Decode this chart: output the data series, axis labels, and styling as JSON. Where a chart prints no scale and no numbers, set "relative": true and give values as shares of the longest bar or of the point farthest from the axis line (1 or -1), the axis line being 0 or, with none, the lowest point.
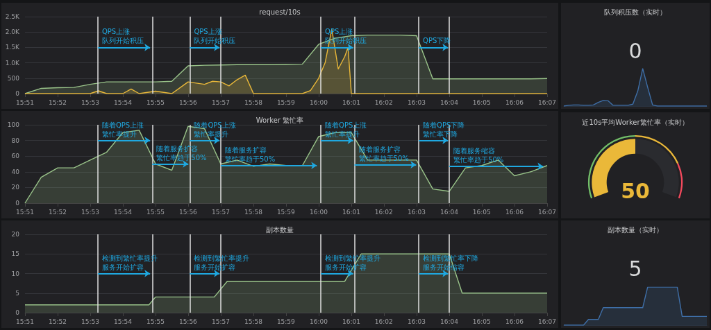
{
  "chart_data": [
    {
      "type": "area",
      "title": "request/10s",
      "x": [
        15.85,
        15.8583,
        15.8667,
        15.875,
        15.8833,
        15.8917,
        15.9,
        15.9083,
        15.9167,
        15.925,
        15.9333,
        15.9417,
        15.95,
        15.9583,
        15.9667,
        15.975,
        15.9833,
        15.9917,
        16.0,
        16.0083,
        16.0167,
        16.025,
        16.0333,
        16.0417,
        16.05,
        16.0583,
        16.0667,
        16.075,
        16.0833,
        16.0917,
        16.1,
        16.1083,
        16.1167
      ],
      "series": [
        {
          "color": "#9ac48a",
          "values": [
            0,
            170,
            190,
            200,
            300,
            380,
            380,
            380,
            380,
            400,
            900,
            920,
            930,
            940,
            940,
            940,
            950,
            960,
            1600,
            1800,
            1880,
            1900,
            1900,
            1900,
            1880,
            480,
            480,
            480,
            480,
            480,
            480,
            480,
            490
          ]
        },
        {
          "color": "#eab839",
          "x": [
            15.85,
            15.8833,
            15.8875,
            15.8917,
            15.9,
            15.9042,
            15.9083,
            15.9167,
            15.925,
            15.9333,
            15.9417,
            15.9458,
            15.95,
            15.9542,
            15.9583,
            15.9625,
            15.9667,
            15.9917,
            15.9958,
            16.0,
            16.0033,
            16.0067,
            16.01,
            16.0133,
            16.015,
            16.0167,
            16.1167
          ],
          "values": [
            0,
            0,
            90,
            0,
            0,
            150,
            0,
            80,
            0,
            380,
            300,
            400,
            380,
            250,
            450,
            600,
            0,
            0,
            100,
            500,
            1000,
            2100,
            800,
            1200,
            1500,
            0,
            0
          ]
        }
      ],
      "xlim": [
        15.85,
        16.1167
      ],
      "xticks": [
        {
          "value": 15.85,
          "label": "15:51"
        },
        {
          "value": 15.8667,
          "label": "15:52"
        },
        {
          "value": 15.8833,
          "label": "15:53"
        },
        {
          "value": 15.9,
          "label": "15:54"
        },
        {
          "value": 15.9167,
          "label": "15:55"
        },
        {
          "value": 15.9333,
          "label": "15:56"
        },
        {
          "value": 15.95,
          "label": "15:57"
        },
        {
          "value": 15.9667,
          "label": "15:58"
        },
        {
          "value": 15.9833,
          "label": "15:59"
        },
        {
          "value": 16,
          "label": "16:00"
        },
        {
          "value": 16.0167,
          "label": "16:01"
        },
        {
          "value": 16.0333,
          "label": "16:02"
        },
        {
          "value": 16.05,
          "label": "16:03"
        },
        {
          "value": 16.0667,
          "label": "16:04"
        },
        {
          "value": 16.0833,
          "label": "16:05"
        },
        {
          "value": 16.1,
          "label": "16:06"
        },
        {
          "value": 16.1167,
          "label": "16:07"
        }
      ],
      "ylim": [
        0,
        2500
      ],
      "yticks": [
        0,
        500,
        {
          "value": 1000,
          "label": "1.0K"
        },
        {
          "value": 1500,
          "label": "1.5K"
        },
        {
          "value": 2000,
          "label": "2.0K"
        },
        {
          "value": 2500,
          "label": "2.5K"
        }
      ],
      "grid": "y",
      "ref_lines": [
        {
          "axis": "x",
          "value": 15.8872,
          "color": "#e0e0e0"
        },
        {
          "axis": "x",
          "value": 15.915,
          "color": "#e0e0e0"
        },
        {
          "axis": "x",
          "value": 15.9342,
          "color": "#e0e0e0"
        },
        {
          "axis": "x",
          "value": 15.95,
          "color": "#e0e0e0"
        },
        {
          "axis": "x",
          "value": 16.0011,
          "color": "#e0e0e0"
        },
        {
          "axis": "x",
          "value": 16.0183,
          "color": "#e0e0e0"
        },
        {
          "axis": "x",
          "value": 16.0511,
          "color": "#e0e0e0"
        },
        {
          "axis": "x",
          "value": 16.0667,
          "color": "#e0e0e0"
        }
      ],
      "annotations": [
        "QPS上涨",
        {
          "text": "队列开始积压",
          "x": 15.8872,
          "y": 1500
        },
        "QPS上涨",
        {
          "text": "队列开始积压",
          "x": 15.9342,
          "y": 1500
        },
        "QPS上涨",
        {
          "text": "队列开始积压",
          "x": 16.0011,
          "y": 1500
        },
        {
          "text": "QPS下降",
          "x": 16.0511,
          "y": 1500
        }
      ]
    },
    {
      "type": "area",
      "title": "Worker 繁忙率",
      "x": [
        15.85,
        15.8583,
        15.8667,
        15.875,
        15.8833,
        15.8917,
        15.9,
        15.9083,
        15.9167,
        15.925,
        15.9333,
        15.9417,
        15.95,
        15.9583,
        15.9667,
        15.975,
        15.9833,
        15.9917,
        16.0,
        16.0083,
        16.0167,
        16.025,
        16.0333,
        16.0417,
        16.05,
        16.0583,
        16.0667,
        16.075,
        16.0833,
        16.0917,
        16.1,
        16.1083,
        16.1167
      ],
      "series": [
        {
          "color": "#9ac48a",
          "values": [
            0,
            33,
            45,
            45,
            55,
            65,
            90,
            93,
            50,
            42,
            98,
            95,
            50,
            55,
            47,
            50,
            48,
            48,
            85,
            90,
            90,
            55,
            55,
            55,
            55,
            18,
            15,
            45,
            48,
            55,
            35,
            40,
            48
          ]
        }
      ],
      "xlim": [
        15.85,
        16.1167
      ],
      "xticks": [
        {
          "value": 15.85,
          "label": "15:51"
        },
        {
          "value": 15.8667,
          "label": "15:52"
        },
        {
          "value": 15.8833,
          "label": "15:53"
        },
        {
          "value": 15.9,
          "label": "15:54"
        },
        {
          "value": 15.9167,
          "label": "15:55"
        },
        {
          "value": 15.9333,
          "label": "15:56"
        },
        {
          "value": 15.95,
          "label": "15:57"
        },
        {
          "value": 15.9667,
          "label": "15:58"
        },
        {
          "value": 15.9833,
          "label": "15:59"
        },
        {
          "value": 16,
          "label": "16:00"
        },
        {
          "value": 16.0167,
          "label": "16:01"
        },
        {
          "value": 16.0333,
          "label": "16:02"
        },
        {
          "value": 16.05,
          "label": "16:03"
        },
        {
          "value": 16.0667,
          "label": "16:04"
        },
        {
          "value": 16.0833,
          "label": "16:05"
        },
        {
          "value": 16.1,
          "label": "16:06"
        },
        {
          "value": 16.1167,
          "label": "16:07"
        }
      ],
      "ylim": [
        0,
        100
      ],
      "yticks": [
        0,
        20,
        40,
        60,
        80,
        100
      ],
      "grid": "y",
      "ref_lines": [
        {
          "axis": "x",
          "value": 15.8872,
          "color": "#e0e0e0"
        },
        {
          "axis": "x",
          "value": 15.915,
          "color": "#e0e0e0"
        },
        {
          "axis": "x",
          "value": 15.9342,
          "color": "#e0e0e0"
        },
        {
          "axis": "x",
          "value": 15.95,
          "color": "#e0e0e0"
        },
        {
          "axis": "x",
          "value": 16.0011,
          "color": "#e0e0e0"
        },
        {
          "axis": "x",
          "value": 16.0183,
          "color": "#e0e0e0"
        },
        {
          "axis": "x",
          "value": 16.0511,
          "color": "#e0e0e0"
        },
        {
          "axis": "x",
          "value": 16.0667,
          "color": "#e0e0e0"
        }
      ],
      "annotations": [
        "随着QPS上涨",
        {
          "text": "繁忙率提升",
          "x": 15.8872,
          "y": 80
        },
        "随着服务扩容",
        {
          "text": "繁忙率趋于50%",
          "x": 15.915,
          "y": 50
        },
        "随着QPS上涨",
        {
          "text": "繁忙率提升",
          "x": 15.9342,
          "y": 80
        },
        "随着服务扩容",
        {
          "text": "繁忙率趋于50%",
          "x": 15.95,
          "y": 48
        },
        "随着QPS上涨",
        {
          "text": "繁忙率提升",
          "x": 16.0011,
          "y": 80
        },
        "随着服务扩容",
        {
          "text": "繁忙率趋于50%",
          "x": 16.0183,
          "y": 49
        },
        "随着QPS下降",
        {
          "text": "繁忙率下降",
          "x": 16.0511,
          "y": 80
        },
        "随着服务缩容",
        {
          "text": "繁忙率趋于50%",
          "x": 16.0667,
          "y": 47
        }
      ]
    },
    {
      "type": "area",
      "title": "副本数量",
      "x": [
        15.85,
        15.9133,
        15.9167,
        15.9467,
        15.9533,
        16.0133,
        16.0217,
        16.0667,
        16.0733,
        16.1167
      ],
      "series": [
        {
          "color": "#9ac48a",
          "values": [
            2,
            2,
            4,
            4,
            8,
            8,
            15,
            15,
            5,
            5
          ]
        }
      ],
      "xlim": [
        15.85,
        16.1167
      ],
      "xticks": [
        {
          "value": 15.85,
          "label": "15:51"
        },
        {
          "value": 15.8667,
          "label": "15:52"
        },
        {
          "value": 15.8833,
          "label": "15:53"
        },
        {
          "value": 15.9,
          "label": "15:54"
        },
        {
          "value": 15.9167,
          "label": "15:55"
        },
        {
          "value": 15.9333,
          "label": "15:56"
        },
        {
          "value": 15.95,
          "label": "15:57"
        },
        {
          "value": 15.9667,
          "label": "15:58"
        },
        {
          "value": 15.9833,
          "label": "15:59"
        },
        {
          "value": 16,
          "label": "16:00"
        },
        {
          "value": 16.0167,
          "label": "16:01"
        },
        {
          "value": 16.0333,
          "label": "16:02"
        },
        {
          "value": 16.05,
          "label": "16:03"
        },
        {
          "value": 16.0667,
          "label": "16:04"
        },
        {
          "value": 16.0833,
          "label": "16:05"
        },
        {
          "value": 16.1,
          "label": "16:06"
        },
        {
          "value": 16.1167,
          "label": "16:07"
        }
      ],
      "ylim": [
        0,
        20
      ],
      "yticks": [
        0,
        5,
        10,
        15,
        20
      ],
      "grid": "y",
      "ref_lines": [
        {
          "axis": "x",
          "value": 15.8872,
          "color": "#e0e0e0"
        },
        {
          "axis": "x",
          "value": 15.915,
          "color": "#e0e0e0"
        },
        {
          "axis": "x",
          "value": 15.9342,
          "color": "#e0e0e0"
        },
        {
          "axis": "x",
          "value": 15.95,
          "color": "#e0e0e0"
        },
        {
          "axis": "x",
          "value": 16.0011,
          "color": "#e0e0e0"
        },
        {
          "axis": "x",
          "value": 16.0183,
          "color": "#e0e0e0"
        },
        {
          "axis": "x",
          "value": 16.0511,
          "color": "#e0e0e0"
        },
        {
          "axis": "x",
          "value": 16.0667,
          "color": "#e0e0e0"
        }
      ],
      "annotations": [
        "检测到繁忙率提升",
        {
          "text": "服务开始扩容",
          "x": 15.8872,
          "y": 10
        },
        "检测到繁忙率提升",
        {
          "text": "服务开始扩容",
          "x": 15.9342,
          "y": 10
        },
        "检测到繁忙率提升",
        {
          "text": "服务开始扩容",
          "x": 16.0011,
          "y": 10
        },
        "检测到繁忙率下降",
        {
          "text": "服务开始缩容",
          "x": 16.0511,
          "y": 10
        }
      ]
    },
    {
      "type": "area",
      "title": "队列积压数（实时）",
      "relative": true,
      "categories": [
        null,
        null,
        null,
        null,
        null,
        null,
        null,
        null,
        null,
        null,
        null,
        null,
        null,
        null,
        null,
        null,
        null,
        null,
        null,
        null,
        null,
        null,
        null,
        null,
        null,
        null,
        null,
        null,
        null,
        null
      ],
      "series": [
        {
          "color": "#3f6fa8",
          "values": [
            0,
            0.02,
            0.03,
            0.03,
            0.02,
            0.02,
            0.03,
            0.1,
            0.15,
            0.14,
            0.02,
            0.02,
            0.02,
            0.02,
            0.05,
            0.4,
            1,
            0.5,
            0.03,
            0,
            0,
            0,
            0,
            0,
            0,
            0,
            0,
            0,
            0,
            0
          ]
        }
      ],
      "annotations": [
        "0"
      ]
    },
    {
      "type": "donut",
      "title": "近10s平均Worker繁忙率（实时）",
      "series": [
        {
          "values": [
            50,
            50
          ],
          "colors": [
            "#eab839",
            "#2a2b2f"
          ]
        },
        {
          "values": [
            50,
            30,
            20
          ],
          "colors": [
            "#73bf69",
            "#eab839",
            "#f2495c"
          ]
        }
      ],
      "annotations": [
        "50"
      ]
    },
    {
      "type": "area",
      "title": "副本数量（实时）",
      "relative": true,
      "categories": [
        null,
        null,
        null,
        null,
        null,
        null,
        null,
        null,
        null,
        null,
        null,
        null,
        null,
        null,
        null,
        null,
        null,
        null,
        null,
        null,
        null,
        null,
        null,
        null,
        null,
        null,
        null,
        null,
        null,
        null
      ],
      "series": [
        {
          "color": "#3f6fa8",
          "values": [
            0,
            0,
            0,
            0,
            0,
            0.15,
            0.15,
            0.15,
            0.46,
            0.46,
            0.46,
            0.46,
            0.46,
            0.46,
            0.46,
            0.46,
            0.46,
            1,
            1,
            1,
            1,
            1,
            1,
            1,
            0.23,
            0.23,
            0.23,
            0.23,
            0.23,
            0.23
          ]
        }
      ],
      "annotations": [
        "5"
      ]
    }
  ]
}
